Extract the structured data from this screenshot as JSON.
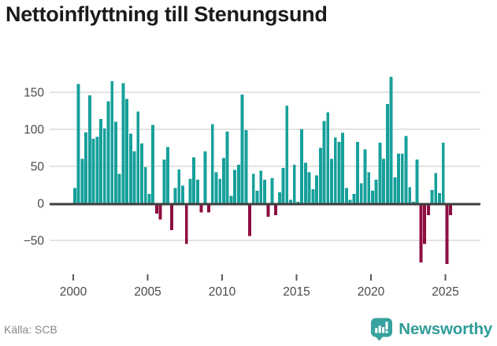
{
  "title": "Nettoinflyttning till Stenungsund",
  "footer": {
    "source_label": "Källa: SCB",
    "brand_name": "Newsworthy"
  },
  "colors": {
    "positive": "#17a09b",
    "negative": "#8e0e40",
    "grid": "#e3e3e3",
    "axis": "#3f3f3f",
    "tick_line": "#5a5a5a",
    "tick_text": "#4a4a4a",
    "title_text": "#1b1b1b",
    "source_text": "#878787",
    "brand_teal": "#2f9c98",
    "badge_teal": "#38a29e"
  },
  "chart_data": {
    "type": "bar",
    "title": "Nettoinflyttning till Stenungsund",
    "xlabel": "",
    "ylabel": "",
    "x_unit": "quarter",
    "grid": true,
    "ylim": [
      -90,
      180
    ],
    "y_ticks": [
      150,
      100,
      50,
      0,
      -50
    ],
    "x_tick_labels": [
      "2000",
      "2005",
      "2010",
      "2015",
      "2020",
      "2025"
    ],
    "categories": [
      "2000Q1",
      "2000Q2",
      "2000Q3",
      "2000Q4",
      "2001Q1",
      "2001Q2",
      "2001Q3",
      "2001Q4",
      "2002Q1",
      "2002Q2",
      "2002Q3",
      "2002Q4",
      "2003Q1",
      "2003Q2",
      "2003Q3",
      "2003Q4",
      "2004Q1",
      "2004Q2",
      "2004Q3",
      "2004Q4",
      "2005Q1",
      "2005Q2",
      "2005Q3",
      "2005Q4",
      "2006Q1",
      "2006Q2",
      "2006Q3",
      "2006Q4",
      "2007Q1",
      "2007Q2",
      "2007Q3",
      "2007Q4",
      "2008Q1",
      "2008Q2",
      "2008Q3",
      "2008Q4",
      "2009Q1",
      "2009Q2",
      "2009Q3",
      "2009Q4",
      "2010Q1",
      "2010Q2",
      "2010Q3",
      "2010Q4",
      "2011Q1",
      "2011Q2",
      "2011Q3",
      "2011Q4",
      "2012Q1",
      "2012Q2",
      "2012Q3",
      "2012Q4",
      "2013Q1",
      "2013Q2",
      "2013Q3",
      "2013Q4",
      "2014Q1",
      "2014Q2",
      "2014Q3",
      "2014Q4",
      "2015Q1",
      "2015Q2",
      "2015Q3",
      "2015Q4",
      "2016Q1",
      "2016Q2",
      "2016Q3",
      "2016Q4",
      "2017Q1",
      "2017Q2",
      "2017Q3",
      "2017Q4",
      "2018Q1",
      "2018Q2",
      "2018Q3",
      "2018Q4",
      "2019Q1",
      "2019Q2",
      "2019Q3",
      "2019Q4",
      "2020Q1",
      "2020Q2",
      "2020Q3",
      "2020Q4",
      "2021Q1",
      "2021Q2",
      "2021Q3",
      "2021Q4",
      "2022Q1",
      "2022Q2",
      "2022Q3",
      "2022Q4",
      "2023Q1",
      "2023Q2",
      "2023Q3",
      "2023Q4",
      "2024Q1",
      "2024Q2",
      "2024Q3",
      "2024Q4",
      "2025Q1",
      "2025Q2"
    ],
    "values": [
      21,
      161,
      60,
      96,
      146,
      87,
      90,
      114,
      101,
      138,
      165,
      110,
      40,
      162,
      141,
      94,
      70,
      124,
      81,
      49,
      13,
      106,
      -14,
      -22,
      59,
      76,
      -36,
      21,
      46,
      24,
      -55,
      33,
      62,
      32,
      -12,
      70,
      -12,
      107,
      42,
      33,
      61,
      97,
      10,
      45,
      52,
      147,
      99,
      -44,
      40,
      17,
      44,
      32,
      -18,
      34,
      -16,
      15,
      48,
      132,
      5,
      52,
      2,
      100,
      55,
      42,
      19,
      38,
      75,
      111,
      123,
      60,
      89,
      83,
      95,
      21,
      5,
      13,
      83,
      27,
      73,
      42,
      17,
      32,
      82,
      60,
      134,
      171,
      35,
      67,
      67,
      91,
      22,
      2,
      59,
      -80,
      -55,
      -16,
      18,
      41,
      14,
      82,
      -82,
      -16
    ]
  }
}
